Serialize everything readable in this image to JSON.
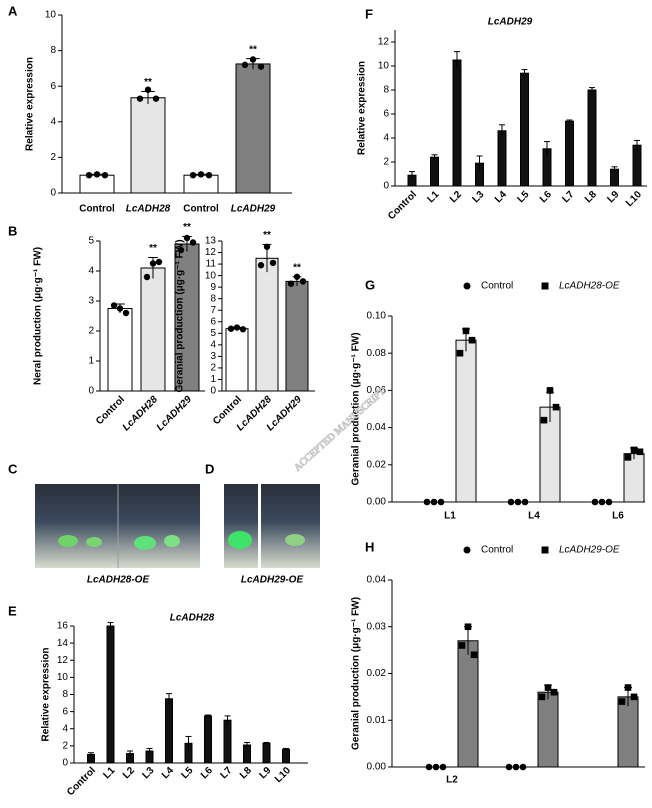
{
  "chart_data": [
    {
      "type": "bar",
      "panel_label": "A",
      "ylabel": "Relative expression",
      "categories": [
        "Control",
        "LcADH28",
        "Control",
        "LcADH29"
      ],
      "values": [
        1.0,
        5.35,
        1.0,
        7.25
      ],
      "errors": [
        0.05,
        0.35,
        0.05,
        0.3
      ],
      "points": [
        [
          1.0,
          1.05,
          1.0
        ],
        [
          5.3,
          5.8,
          5.3
        ],
        [
          1.0,
          1.05,
          1.0
        ],
        [
          7.2,
          7.5,
          7.1
        ]
      ],
      "colors": [
        "#ffffff",
        "#e6e6e6",
        "#ffffff",
        "#808080"
      ],
      "annotations": [
        {
          "index": 1,
          "text": "**"
        },
        {
          "index": 3,
          "text": "**"
        }
      ],
      "ylim": [
        0,
        10
      ],
      "yticks": [
        0,
        2,
        4,
        6,
        8,
        10
      ]
    },
    {
      "type": "bar",
      "panel_label": "B",
      "ylabel": "Neral production (μg·g⁻¹ FW)",
      "categories": [
        "Control",
        "LcADH28",
        "LcADH29"
      ],
      "values": [
        2.75,
        4.1,
        4.9
      ],
      "errors": [
        0.15,
        0.35,
        0.25
      ],
      "points": [
        [
          2.85,
          2.75,
          2.6
        ],
        [
          3.8,
          4.25,
          4.3
        ],
        [
          4.7,
          5.1,
          4.95
        ]
      ],
      "colors": [
        "#ffffff",
        "#e6e6e6",
        "#808080"
      ],
      "annotations": [
        {
          "index": 1,
          "text": "**"
        },
        {
          "index": 2,
          "text": "**"
        }
      ],
      "ylim": [
        0,
        5
      ],
      "yticks": [
        0,
        1,
        2,
        3,
        4,
        5
      ]
    },
    {
      "type": "bar",
      "ylabel": "Geranial production (μg·g⁻¹ FW)",
      "categories": [
        "Control",
        "LcADH28",
        "LcADH29"
      ],
      "values": [
        5.4,
        11.5,
        9.5
      ],
      "errors": [
        0.1,
        1.2,
        0.4
      ],
      "points": [
        [
          5.4,
          5.5,
          5.35
        ],
        [
          10.9,
          12.5,
          11.1
        ],
        [
          9.3,
          9.9,
          9.5
        ]
      ],
      "colors": [
        "#ffffff",
        "#e6e6e6",
        "#808080"
      ],
      "annotations": [
        {
          "index": 1,
          "text": "**"
        },
        {
          "index": 2,
          "text": "**"
        }
      ],
      "ylim": [
        0,
        13
      ],
      "yticks": [
        0,
        1,
        2,
        3,
        4,
        5,
        6,
        7,
        8,
        9,
        10,
        11,
        12,
        13
      ]
    },
    {
      "type": "bar",
      "panel_label": "E",
      "title": "LcADH28",
      "ylabel": "Relative expression",
      "categories": [
        "Control",
        "L1",
        "L2",
        "L3",
        "L4",
        "L5",
        "L6",
        "L7",
        "L8",
        "L9",
        "L10"
      ],
      "values": [
        1.0,
        16.0,
        1.1,
        1.4,
        7.5,
        2.3,
        5.5,
        5.0,
        2.1,
        2.3,
        1.6
      ],
      "errors": [
        0.2,
        0.4,
        0.3,
        0.3,
        0.6,
        0.8,
        0.1,
        0.5,
        0.3,
        0.1,
        0.1
      ],
      "color": "#111111",
      "ylim": [
        0,
        16
      ],
      "yticks": [
        0,
        2,
        4,
        6,
        8,
        10,
        12,
        14,
        16
      ]
    },
    {
      "type": "bar",
      "panel_label": "F",
      "title": "LcADH29",
      "ylabel": "Relative expression",
      "categories": [
        "Control",
        "L1",
        "L2",
        "L3",
        "L4",
        "L5",
        "L6",
        "L7",
        "L8",
        "L9",
        "L10"
      ],
      "values": [
        0.9,
        2.4,
        10.5,
        1.9,
        4.6,
        9.4,
        3.1,
        5.4,
        8.0,
        1.4,
        3.4
      ],
      "errors": [
        0.3,
        0.2,
        0.7,
        0.6,
        0.5,
        0.3,
        0.6,
        0.1,
        0.2,
        0.2,
        0.4
      ],
      "color": "#111111",
      "ylim": [
        0,
        13
      ],
      "yticks": [
        0,
        2,
        4,
        6,
        8,
        10,
        12
      ]
    },
    {
      "type": "grouped_bar",
      "panel_label": "G",
      "ylabel": "Geranial production (μg·g⁻¹ FW)",
      "categories": [
        "L1",
        "L4",
        "L6"
      ],
      "series": [
        {
          "name": "Control",
          "marker": "circle",
          "values": [
            0,
            0,
            0
          ],
          "points": [
            [
              0,
              0,
              0
            ],
            [
              0,
              0,
              0
            ],
            [
              0,
              0,
              0
            ]
          ]
        },
        {
          "name": "LcADH28-OE",
          "marker": "square",
          "color": "#e6e6e6",
          "values": [
            0.087,
            0.051,
            0.026
          ],
          "errors": [
            0.006,
            0.008,
            0.003
          ],
          "points": [
            [
              0.08,
              0.092,
              0.087
            ],
            [
              0.044,
              0.06,
              0.051
            ],
            [
              0.024,
              0.028,
              0.027
            ]
          ]
        }
      ],
      "ylim": [
        0,
        0.1
      ],
      "yticks": [
        {
          "value": 0,
          "label": "0.00"
        },
        0.02,
        0.04,
        0.06,
        0.08,
        {
          "value": 0.1,
          "label": "0.10"
        }
      ]
    },
    {
      "type": "grouped_bar",
      "panel_label": "H",
      "ylabel": "Geranial production (μg·g⁻¹ FW)",
      "categories": [
        "L2",
        null,
        null
      ],
      "series": [
        {
          "name": "Control",
          "marker": "circle",
          "values": [
            0,
            0,
            null
          ],
          "points": [
            [
              0,
              0,
              0
            ],
            [
              0,
              0,
              0
            ],
            null
          ]
        },
        {
          "name": "LcADH29-OE",
          "marker": "square",
          "color": "#808080",
          "values": [
            0.027,
            0.016,
            0.015
          ],
          "errors": [
            0.003,
            0.0015,
            0.002
          ],
          "points": [
            [
              0.026,
              0.03,
              0.024
            ],
            [
              0.015,
              0.017,
              0.016
            ],
            [
              0.014,
              0.017,
              0.015
            ]
          ]
        }
      ],
      "ylim": [
        0,
        0.04
      ],
      "yticks": [
        {
          "value": 0,
          "label": "0.00"
        },
        0.01,
        0.02,
        0.03,
        0.04
      ]
    }
  ],
  "photos": [
    {
      "label": "C",
      "caption": "LcADH28-OE"
    },
    {
      "label": "D",
      "caption": "LcADH29-OE"
    }
  ],
  "watermark": "ACCEPTED MANUSCRIPT"
}
